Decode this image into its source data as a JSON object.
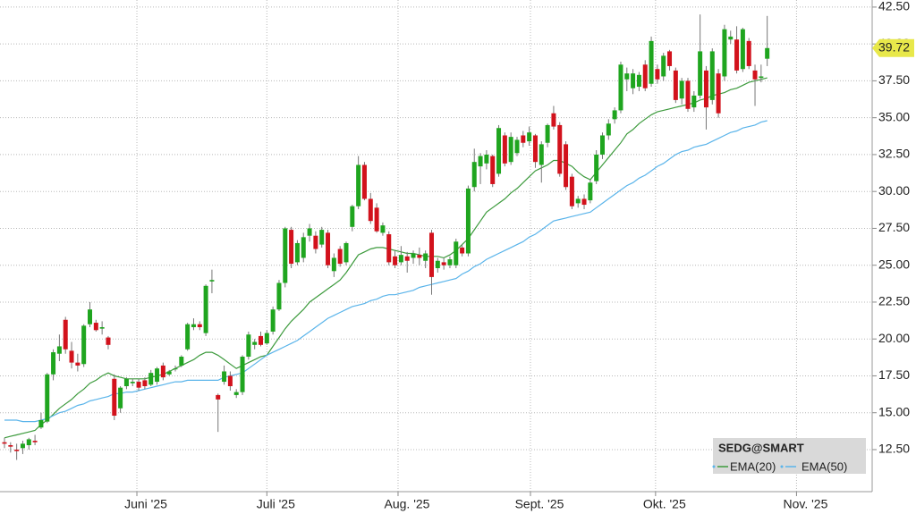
{
  "chart_data": {
    "type": "candlestick",
    "ticker": "SEDG@SMART",
    "up_color": "#1fa51f",
    "down_color": "#d2121c",
    "open": [
      13.0,
      12.8,
      12.5,
      12.6,
      12.8,
      13.1,
      14.0,
      14.4,
      17.6,
      19.0,
      21.3,
      19.2,
      18.4,
      18.3,
      21.0,
      21.1,
      20.7,
      20.1,
      17.3,
      15.3,
      16.8,
      17.0,
      17.1,
      17.2,
      16.9,
      17.1,
      18.2,
      17.6,
      18.0,
      18.2,
      19.3,
      20.8,
      21.0,
      20.4,
      23.9,
      16.2,
      17.1,
      17.5,
      16.2,
      16.4,
      18.8,
      19.6,
      20.2,
      19.7,
      20.5,
      22.0,
      23.8,
      27.4,
      25.2,
      25.5,
      27.0,
      27.0,
      26.4,
      27.2,
      24.6,
      26.1,
      25.2,
      27.6,
      29.0,
      31.8,
      29.5,
      28.9,
      27.2,
      27.1,
      25.6,
      25.2,
      25.6,
      25.5,
      25.7,
      25.3,
      27.2,
      24.8,
      25.2,
      25.0,
      25.0,
      26.2,
      25.8,
      30.3,
      31.7,
      31.9,
      32.4,
      31.2,
      33.8,
      32.0,
      32.6,
      33.8,
      33.4,
      33.8,
      31.8,
      33.3,
      35.3,
      34.5,
      33.2,
      31.0,
      29.2,
      29.5,
      29.4,
      30.7,
      32.5,
      33.8,
      34.9,
      35.5,
      37.6,
      37.0,
      37.1,
      38.6,
      37.3,
      38.3,
      37.8,
      39.5,
      38.2,
      36.3,
      37.5,
      35.7,
      36.5,
      38.2,
      36.2,
      38.0,
      37.8,
      40.3,
      40.3,
      38.3,
      40.2,
      38.2,
      37.7,
      39.0
    ],
    "high": [
      13.3,
      13.0,
      12.9,
      13.1,
      13.3,
      13.5,
      15.0,
      17.7,
      19.3,
      20.3,
      21.5,
      19.8,
      19.0,
      21.0,
      22.5,
      21.3,
      21.2,
      20.2,
      17.6,
      16.8,
      17.4,
      17.3,
      17.3,
      17.4,
      17.9,
      18.1,
      18.4,
      17.9,
      18.2,
      18.9,
      21.1,
      21.4,
      21.2,
      23.7,
      24.7,
      16.3,
      18.2,
      17.8,
      16.6,
      18.9,
      20.5,
      20.0,
      20.5,
      20.6,
      22.2,
      24.0,
      27.6,
      27.6,
      26.7,
      27.2,
      27.8,
      27.3,
      27.6,
      27.4,
      25.8,
      26.3,
      26.6,
      29.1,
      32.4,
      32.0,
      29.9,
      29.2,
      27.9,
      27.3,
      26.0,
      26.3,
      25.9,
      26.0,
      26.2,
      26.0,
      27.4,
      25.5,
      25.5,
      25.6,
      26.8,
      26.4,
      30.4,
      32.9,
      32.6,
      32.8,
      32.5,
      34.5,
      34.0,
      34.0,
      33.7,
      34.1,
      34.4,
      33.9,
      33.4,
      34.6,
      35.8,
      34.7,
      33.4,
      31.2,
      29.7,
      29.8,
      30.8,
      32.8,
      34.0,
      34.9,
      35.7,
      38.8,
      38.4,
      38.3,
      38.1,
      38.9,
      40.5,
      38.6,
      39.4,
      39.6,
      38.4,
      37.7,
      37.7,
      36.8,
      42.0,
      38.5,
      39.7,
      38.3,
      41.3,
      40.9,
      41.2,
      41.1,
      40.4,
      38.6,
      38.6,
      41.9
    ],
    "low": [
      12.6,
      12.3,
      11.8,
      12.2,
      12.5,
      12.8,
      13.9,
      14.3,
      17.2,
      18.5,
      19.0,
      18.0,
      17.8,
      18.1,
      20.8,
      20.5,
      20.3,
      19.3,
      14.5,
      15.0,
      16.6,
      16.8,
      16.5,
      16.6,
      16.8,
      16.9,
      17.2,
      17.5,
      17.8,
      18.1,
      19.2,
      20.6,
      20.6,
      20.2,
      23.1,
      13.7,
      16.9,
      16.5,
      16.0,
      16.2,
      18.6,
      19.3,
      19.5,
      19.6,
      20.3,
      21.9,
      23.5,
      24.8,
      25.0,
      25.2,
      26.6,
      25.8,
      26.2,
      24.8,
      24.2,
      24.9,
      25.0,
      27.3,
      28.8,
      29.4,
      27.8,
      27.2,
      27.0,
      25.0,
      24.8,
      25.0,
      24.5,
      25.1,
      25.0,
      24.8,
      23.0,
      24.5,
      24.7,
      24.8,
      24.8,
      25.6,
      25.6,
      30.0,
      30.5,
      31.5,
      30.3,
      31.0,
      31.7,
      31.8,
      32.4,
      33.0,
      33.1,
      31.6,
      30.6,
      33.0,
      34.2,
      31.0,
      30.1,
      28.8,
      28.9,
      28.8,
      29.2,
      30.5,
      32.2,
      33.5,
      34.6,
      35.3,
      36.8,
      36.6,
      36.8,
      36.8,
      37.1,
      37.3,
      37.5,
      38.2,
      36.0,
      35.9,
      35.4,
      35.4,
      36.3,
      34.2,
      35.9,
      35.0,
      37.5,
      40.0,
      38.0,
      38.1,
      38.3,
      35.8,
      37.4,
      38.5
    ],
    "close": [
      12.9,
      12.7,
      12.4,
      12.9,
      13.2,
      13.0,
      14.5,
      17.6,
      19.1,
      19.5,
      19.3,
      18.4,
      18.2,
      20.9,
      22.0,
      20.6,
      20.8,
      19.6,
      14.8,
      16.7,
      17.3,
      17.1,
      16.7,
      16.8,
      17.7,
      18.0,
      17.4,
      17.8,
      18.0,
      18.8,
      21.0,
      21.0,
      20.8,
      23.6,
      24.0,
      15.9,
      17.8,
      16.8,
      16.4,
      18.8,
      20.3,
      19.8,
      19.6,
      20.4,
      22.0,
      23.8,
      27.5,
      25.1,
      26.5,
      26.9,
      27.5,
      26.1,
      27.4,
      25.0,
      25.5,
      25.1,
      26.5,
      29.0,
      31.8,
      29.5,
      28.0,
      27.3,
      27.7,
      25.2,
      25.0,
      25.7,
      25.3,
      25.8,
      25.5,
      25.8,
      24.2,
      25.3,
      25.0,
      25.4,
      26.6,
      25.8,
      30.2,
      32.0,
      32.4,
      32.5,
      30.5,
      34.3,
      31.9,
      33.7,
      33.5,
      33.3,
      34.0,
      32.0,
      33.2,
      34.5,
      34.4,
      31.2,
      30.3,
      29.0,
      29.5,
      29.1,
      30.6,
      32.5,
      33.8,
      34.6,
      35.5,
      38.6,
      38.0,
      38.0,
      37.9,
      37.0,
      40.2,
      37.6,
      39.2,
      38.5,
      36.2,
      37.5,
      35.6,
      36.5,
      39.5,
      35.7,
      39.5,
      35.3,
      41.0,
      40.5,
      38.2,
      41.0,
      38.5,
      37.6,
      37.8,
      39.72
    ],
    "series": [
      {
        "name": "EMA(20)",
        "color": "#3c9a3c",
        "values": [
          13.3,
          13.4,
          13.5,
          13.6,
          13.7,
          13.8,
          14.2,
          14.5,
          14.9,
          15.3,
          15.6,
          15.9,
          16.3,
          16.6,
          17.0,
          17.2,
          17.5,
          17.7,
          17.5,
          17.4,
          17.3,
          17.3,
          17.3,
          17.3,
          17.4,
          17.5,
          17.6,
          17.8,
          18.0,
          18.2,
          18.4,
          18.6,
          18.9,
          19.1,
          19.1,
          18.9,
          18.6,
          18.3,
          18.0,
          18.2,
          18.4,
          18.6,
          18.8,
          18.9,
          19.5,
          20.1,
          20.7,
          21.2,
          21.6,
          22.0,
          22.5,
          22.8,
          23.1,
          23.4,
          23.7,
          24.0,
          24.5,
          25.1,
          25.7,
          25.9,
          26.1,
          26.2,
          26.2,
          26.1,
          26.0,
          25.9,
          25.8,
          25.8,
          25.7,
          25.6,
          25.6,
          25.6,
          25.5,
          25.7,
          26.0,
          26.4,
          26.8,
          27.4,
          28.0,
          28.6,
          28.9,
          29.2,
          29.5,
          29.9,
          30.2,
          30.6,
          31.0,
          31.4,
          31.6,
          31.8,
          32.1,
          32.1,
          31.9,
          31.7,
          31.3,
          31.0,
          30.8,
          31.3,
          31.8,
          32.3,
          32.8,
          33.3,
          33.9,
          34.2,
          34.6,
          34.9,
          35.2,
          35.4,
          35.5,
          35.6,
          35.7,
          35.8,
          35.9,
          36.0,
          36.2,
          36.3,
          36.5,
          36.6,
          36.7,
          36.9,
          37.0,
          37.2,
          37.4,
          37.5,
          37.6,
          37.7
        ]
      },
      {
        "name": "EMA(50)",
        "color": "#5ab4ea",
        "values": [
          14.5,
          14.5,
          14.5,
          14.4,
          14.4,
          14.4,
          14.5,
          14.6,
          14.8,
          15.0,
          15.1,
          15.3,
          15.5,
          15.6,
          15.8,
          15.9,
          16.0,
          16.1,
          16.3,
          16.3,
          16.4,
          16.4,
          16.5,
          16.6,
          16.7,
          16.8,
          16.9,
          17.0,
          17.1,
          17.1,
          17.2,
          17.2,
          17.2,
          17.2,
          17.2,
          17.2,
          17.4,
          17.5,
          17.6,
          17.7,
          18.0,
          18.3,
          18.6,
          18.9,
          19.1,
          19.3,
          19.5,
          19.7,
          19.9,
          20.2,
          20.5,
          20.8,
          21.1,
          21.4,
          21.6,
          21.8,
          22.0,
          22.2,
          22.3,
          22.4,
          22.6,
          22.7,
          22.9,
          23.0,
          23.0,
          23.1,
          23.2,
          23.3,
          23.5,
          23.6,
          23.7,
          23.8,
          23.9,
          24.0,
          24.1,
          24.4,
          24.6,
          24.9,
          25.1,
          25.4,
          25.6,
          25.8,
          26.0,
          26.2,
          26.4,
          26.6,
          26.9,
          27.1,
          27.4,
          27.7,
          28.0,
          28.1,
          28.2,
          28.3,
          28.4,
          28.5,
          28.6,
          28.9,
          29.2,
          29.5,
          29.8,
          30.1,
          30.4,
          30.6,
          30.9,
          31.1,
          31.4,
          31.7,
          31.9,
          32.2,
          32.5,
          32.7,
          32.8,
          33.0,
          33.1,
          33.2,
          33.4,
          33.6,
          33.8,
          34.0,
          34.1,
          34.3,
          34.4,
          34.5,
          34.7,
          34.8
        ]
      }
    ],
    "xlim": [
      -0.733,
      142.2
    ],
    "xticks": [
      {
        "value": 21.7,
        "label": "Juni '25"
      },
      {
        "value": 43.0,
        "label": "Juli '25"
      },
      {
        "value": 64.5,
        "label": "Aug. '25"
      },
      {
        "value": 86.2,
        "label": "Sept. '25"
      },
      {
        "value": 106.7,
        "label": "Okt. '25"
      },
      {
        "value": 129.8,
        "label": "Nov. '25"
      }
    ],
    "ylim": [
      9.65,
      42.98
    ],
    "yticks": [
      {
        "value": 12.5,
        "label": "12.50"
      },
      {
        "value": 15,
        "label": "15.00"
      },
      {
        "value": 17.5,
        "label": "17.50"
      },
      {
        "value": 20,
        "label": "20.00"
      },
      {
        "value": 22.5,
        "label": "22.50"
      },
      {
        "value": 25,
        "label": "25.00"
      },
      {
        "value": 27.5,
        "label": "27.50"
      },
      {
        "value": 30,
        "label": "30.00"
      },
      {
        "value": 32.5,
        "label": "32.50"
      },
      {
        "value": 35,
        "label": "35.00"
      },
      {
        "value": 37.5,
        "label": "37.50"
      },
      {
        "value": 40,
        "label": "40.00"
      },
      {
        "value": 42.5,
        "label": "42.50"
      }
    ],
    "grid": true,
    "last_price_color": "#e8e84a"
  }
}
